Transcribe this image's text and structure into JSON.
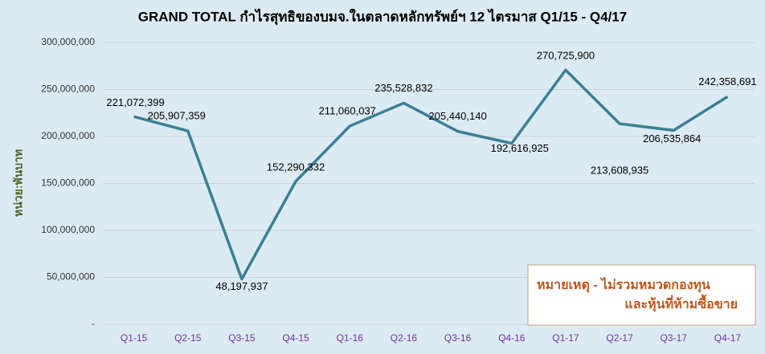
{
  "chart_data": {
    "type": "line",
    "title": "GRAND TOTAL กำไรสุทธิของบมจ.ในตลาดหลักทรัพย์ฯ 12 ไตรมาส Q1/15 - Q4/17",
    "y_label": "หน่วย:พันบาท",
    "categories": [
      "Q1-15",
      "Q2-15",
      "Q3-15",
      "Q4-15",
      "Q1-16",
      "Q2-16",
      "Q3-16",
      "Q4-16",
      "Q1-17",
      "Q2-17",
      "Q3-17",
      "Q4-17"
    ],
    "values": [
      221072399,
      205907359,
      48197937,
      152290332,
      211060037,
      235528832,
      205440140,
      192616925,
      270725900,
      213608935,
      206535864,
      242358691
    ],
    "value_labels": [
      "221,072,399",
      "205,907,359",
      "48,197,937",
      "152,290,332",
      "211,060,037",
      "235,528,832",
      "205,440,140",
      "192,616,925",
      "270,725,900",
      "213,608,935",
      "206,535,864",
      "242,358,691"
    ],
    "color": "#3b7f95",
    "ylim": [
      0,
      300000000
    ],
    "yticks": [
      {
        "value": 0,
        "label": "-"
      },
      {
        "value": 50000000,
        "label": "50,000,000"
      },
      {
        "value": 100000000,
        "label": "100,000,000"
      },
      {
        "value": 150000000,
        "label": "150,000,000"
      },
      {
        "value": 200000000,
        "label": "200,000,000"
      },
      {
        "value": 250000000,
        "label": "250,000,000"
      },
      {
        "value": 300000000,
        "label": "300,000,000"
      }
    ],
    "grid": true,
    "annotations": [
      "หมายเหตุ - ไม่รวมหมวดกองทุน",
      "และหุ้นที่ห้ามซื้อขาย"
    ]
  }
}
